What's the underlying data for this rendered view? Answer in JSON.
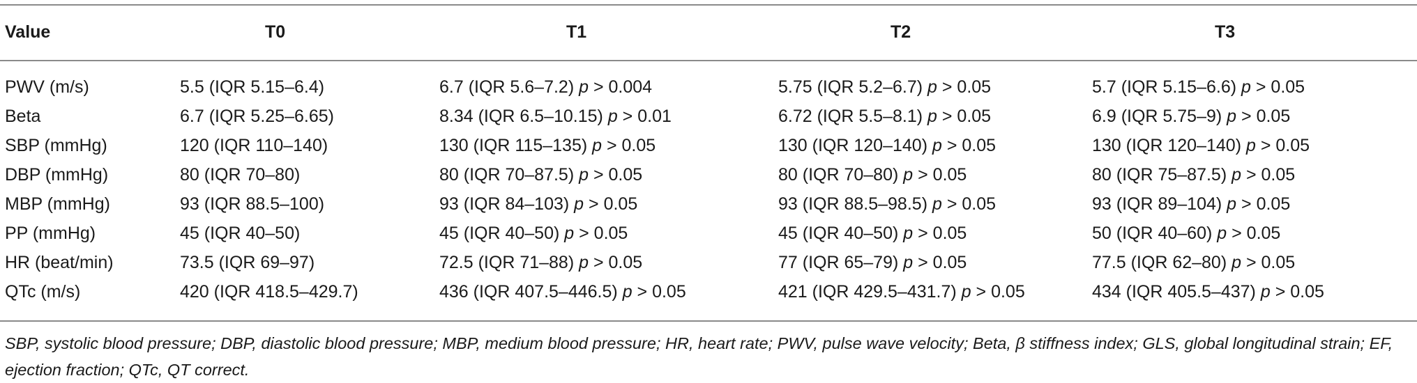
{
  "table": {
    "headers": [
      "Value",
      "T0",
      "T1",
      "T2",
      "T3"
    ],
    "rows": [
      {
        "label": "PWV (m/s)",
        "t0": "5.5 (IQR 5.15–6.4)",
        "t1": "6.7 (IQR 5.6–7.2)",
        "t1_p": "p",
        "t1_pval": " > 0.004",
        "t2": "5.75 (IQR 5.2–6.7)",
        "t2_p": "p",
        "t2_pval": " > 0.05",
        "t3": "5.7 (IQR 5.15–6.6)",
        "t3_p": "p",
        "t3_pval": " > 0.05"
      },
      {
        "label": "Beta",
        "t0": "6.7 (IQR 5.25–6.65)",
        "t1": "8.34 (IQR 6.5–10.15)",
        "t1_p": "p",
        "t1_pval": " > 0.01",
        "t2": "6.72 (IQR 5.5–8.1)",
        "t2_p": "p",
        "t2_pval": " > 0.05",
        "t3": "6.9 (IQR 5.75–9)",
        "t3_p": "p",
        "t3_pval": " > 0.05"
      },
      {
        "label": "SBP (mmHg)",
        "t0": "120 (IQR 110–140)",
        "t1": "130 (IQR 115–135)",
        "t1_p": "p",
        "t1_pval": " > 0.05",
        "t2": "130 (IQR 120–140)",
        "t2_p": "p",
        "t2_pval": " > 0.05",
        "t3": "130 (IQR 120–140)",
        "t3_p": "p",
        "t3_pval": " > 0.05"
      },
      {
        "label": "DBP (mmHg)",
        "t0": "80 (IQR 70–80)",
        "t1": "80 (IQR 70–87.5)",
        "t1_p": "p",
        "t1_pval": " > 0.05",
        "t2": "80 (IQR 70–80)",
        "t2_p": "p",
        "t2_pval": " > 0.05",
        "t3": "80 (IQR 75–87.5)",
        "t3_p": "p",
        "t3_pval": " > 0.05"
      },
      {
        "label": "MBP (mmHg)",
        "t0": "93 (IQR 88.5–100)",
        "t1": "93 (IQR 84–103)",
        "t1_p": "p",
        "t1_pval": " > 0.05",
        "t2": "93 (IQR 88.5–98.5)",
        "t2_p": "p",
        "t2_pval": " > 0.05",
        "t3": "93 (IQR 89–104)",
        "t3_p": "p",
        "t3_pval": " > 0.05"
      },
      {
        "label": "PP (mmHg)",
        "t0": "45 (IQR 40–50)",
        "t1": "45 (IQR 40–50)",
        "t1_p": "p",
        "t1_pval": " > 0.05",
        "t2": "45 (IQR 40–50)",
        "t2_p": "p",
        "t2_pval": " > 0.05",
        "t3": "50 (IQR 40–60)",
        "t3_p": "p",
        "t3_pval": " > 0.05"
      },
      {
        "label": "HR (beat/min)",
        "t0": "73.5 (IQR 69–97)",
        "t1": "72.5 (IQR 71–88)",
        "t1_p": "p",
        "t1_pval": " > 0.05",
        "t2": "77 (IQR 65–79)",
        "t2_p": "p",
        "t2_pval": " > 0.05",
        "t3": "77.5 (IQR 62–80)",
        "t3_p": "p",
        "t3_pval": " > 0.05"
      },
      {
        "label": "QTc (m/s)",
        "t0": "420 (IQR 418.5–429.7)",
        "t1": "436 (IQR 407.5–446.5)",
        "t1_p": "p",
        "t1_pval": " > 0.05",
        "t2": "421 (IQR 429.5–431.7)",
        "t2_p": "p",
        "t2_pval": " > 0.05",
        "t3": "434 (IQR 405.5–437)",
        "t3_p": "p",
        "t3_pval": " > 0.05"
      }
    ]
  },
  "footnote": "SBP, systolic blood pressure; DBP, diastolic blood pressure; MBP, medium blood pressure; HR, heart rate; PWV, pulse wave velocity; Beta, β stiffness index; GLS, global longitudinal strain; EF, ejection fraction; QTc, QT correct."
}
